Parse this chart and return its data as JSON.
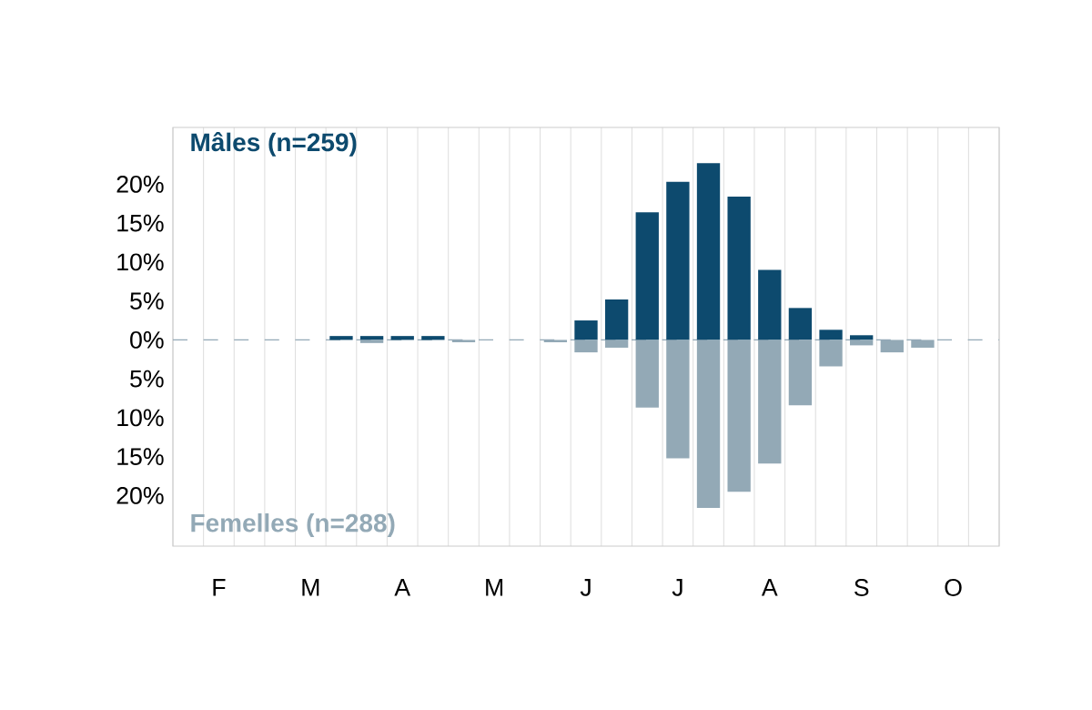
{
  "chart_data": {
    "type": "bar",
    "categories": [
      null,
      "F",
      null,
      null,
      "M",
      null,
      null,
      "A",
      null,
      null,
      "M",
      null,
      null,
      "J",
      null,
      null,
      "J",
      null,
      null,
      "A",
      null,
      null,
      "S",
      null,
      null,
      "O",
      null
    ],
    "series": [
      {
        "name": "Mâles (n=259)",
        "color": "#0d4a6e",
        "values": [
          0,
          0,
          0,
          0,
          0,
          0.5,
          0.5,
          0.5,
          0.5,
          0,
          0,
          0,
          0,
          2.5,
          5.2,
          16.4,
          20.3,
          22.7,
          18.4,
          9.0,
          4.1,
          1.3,
          0.6,
          0,
          0,
          0,
          0
        ]
      },
      {
        "name": "Femelles (n=288)",
        "color": "#93a9b6",
        "values": [
          0,
          0,
          0,
          0,
          0,
          0,
          -0.4,
          0,
          0,
          -0.3,
          0,
          0,
          -0.3,
          -1.6,
          -1.0,
          -8.7,
          -15.2,
          -21.6,
          -19.5,
          -15.9,
          -8.4,
          -3.4,
          -0.7,
          -1.6,
          -1.0,
          0,
          0
        ]
      }
    ],
    "ylim": [
      -26.5,
      27.3
    ],
    "yticks": [
      {
        "value": -20,
        "label": "20%"
      },
      {
        "value": -15,
        "label": "15%"
      },
      {
        "value": -10,
        "label": "10%"
      },
      {
        "value": -5,
        "label": "5%"
      },
      {
        "value": 0,
        "label": "0%"
      },
      {
        "value": 5,
        "label": "5%"
      },
      {
        "value": 10,
        "label": "10%"
      },
      {
        "value": 15,
        "label": "15%"
      },
      {
        "value": 20,
        "label": "20%"
      }
    ],
    "ref_lines": [
      {
        "axis": "y",
        "value": 0,
        "color": "#93a9b6",
        "line_style": "dashed"
      }
    ],
    "grid": "x"
  }
}
